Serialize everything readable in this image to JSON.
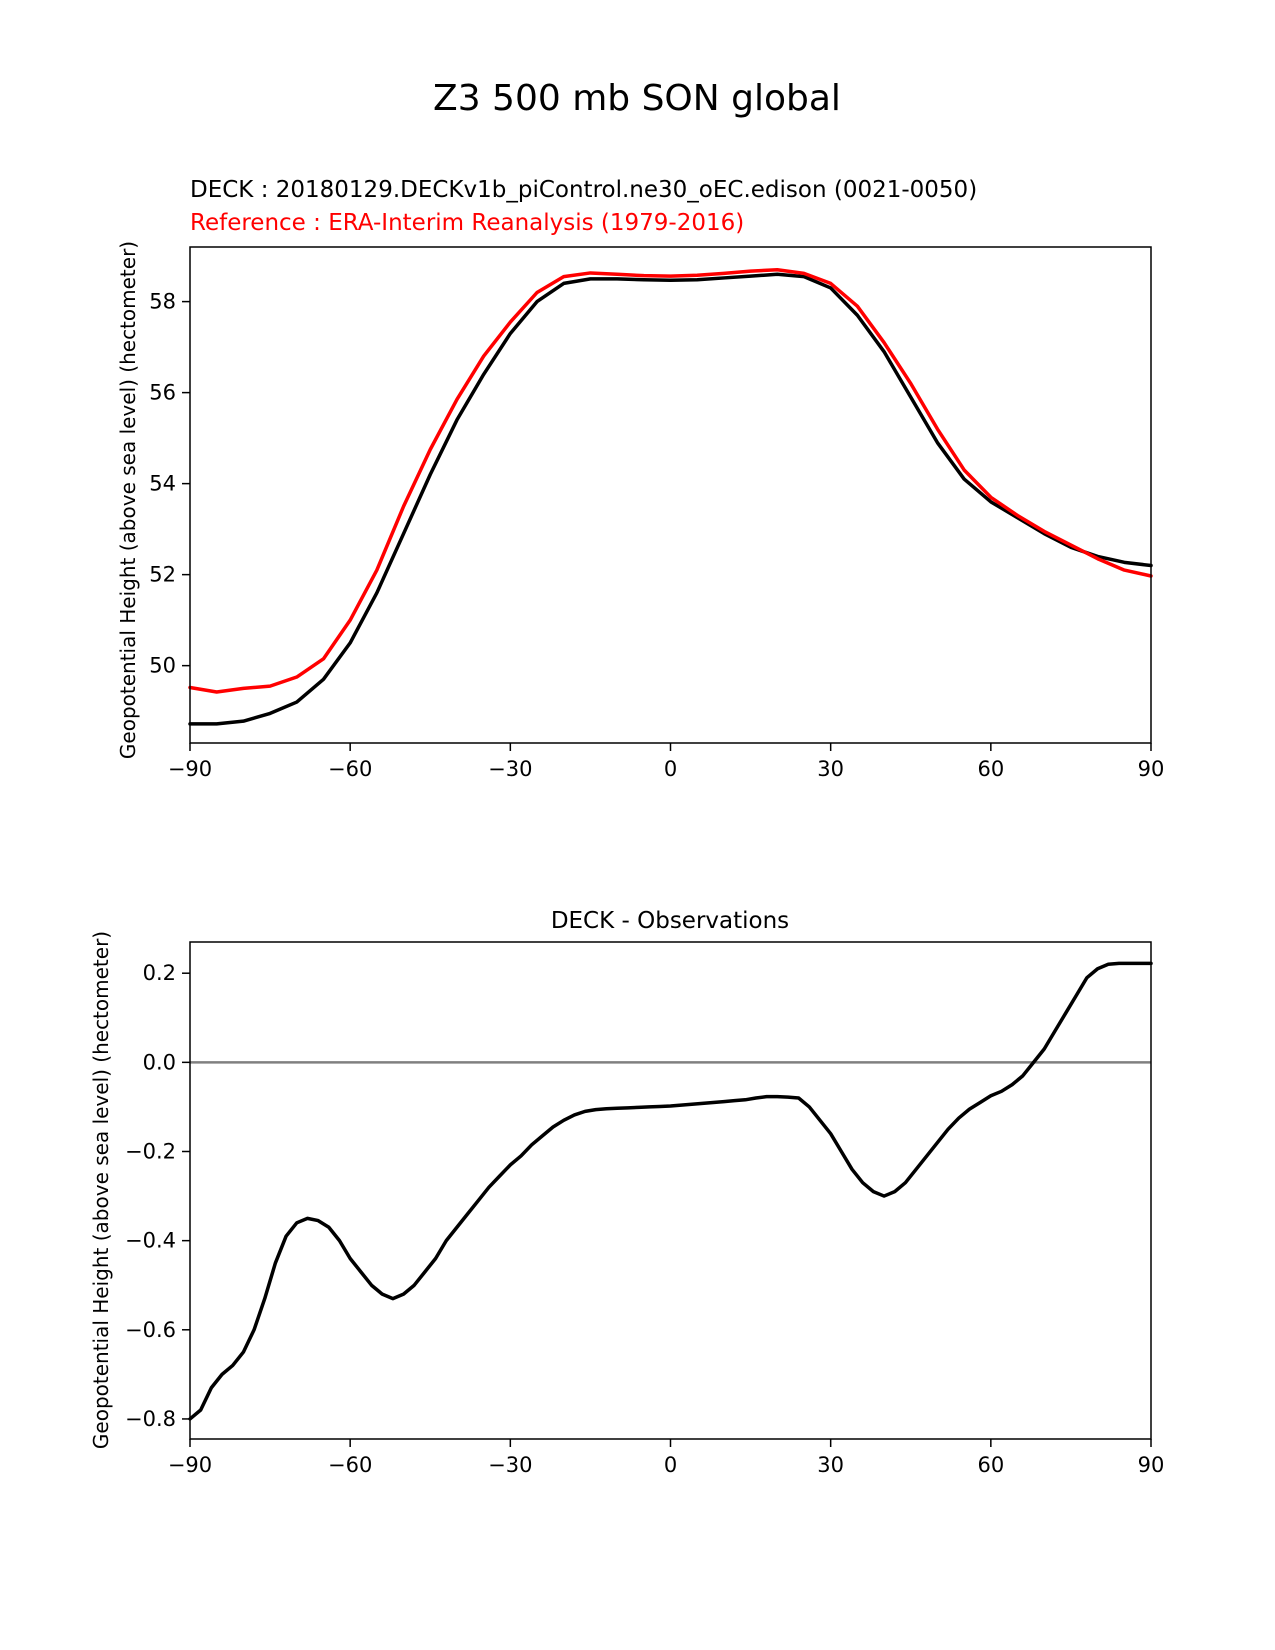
{
  "figure": {
    "suptitle": "Z3 500 mb SON global"
  },
  "chart_data": [
    {
      "type": "line",
      "title_test": "DECK : 20180129.DECKv1b_piControl.ne30_oEC.edison (0021-0050)",
      "title_ref": "Reference : ERA-Interim Reanalysis (1979-2016)",
      "xlabel": "",
      "ylabel": "Geopotential Height (above sea level) (hectometer)",
      "xlim": [
        -90,
        90
      ],
      "ylim": [
        48.3,
        59.2
      ],
      "xticks": [
        -90,
        -60,
        -30,
        0,
        30,
        60,
        90
      ],
      "xtick_labels": [
        "−90",
        "−60",
        "−30",
        "0",
        "30",
        "60",
        "90"
      ],
      "yticks": [
        50,
        52,
        54,
        56,
        58
      ],
      "ytick_labels": [
        "50",
        "52",
        "54",
        "56",
        "58"
      ],
      "x": [
        -90,
        -85,
        -80,
        -75,
        -70,
        -65,
        -60,
        -55,
        -50,
        -45,
        -40,
        -35,
        -30,
        -25,
        -20,
        -15,
        -10,
        -5,
        0,
        5,
        10,
        15,
        20,
        25,
        30,
        35,
        40,
        45,
        50,
        55,
        60,
        65,
        70,
        75,
        80,
        85,
        90
      ],
      "series": [
        {
          "name": "DECK",
          "color": "#000000",
          "values": [
            48.72,
            48.72,
            48.78,
            48.95,
            49.2,
            49.7,
            50.5,
            51.6,
            52.9,
            54.2,
            55.4,
            56.4,
            57.3,
            58.0,
            58.4,
            58.5,
            58.5,
            58.48,
            58.47,
            58.48,
            58.52,
            58.56,
            58.6,
            58.55,
            58.3,
            57.7,
            56.9,
            55.9,
            54.9,
            54.1,
            53.6,
            53.25,
            52.9,
            52.6,
            52.4,
            52.27,
            52.2
          ]
        },
        {
          "name": "ERA-Interim",
          "color": "#ff0000",
          "values": [
            49.52,
            49.42,
            49.5,
            49.55,
            49.75,
            50.15,
            51.0,
            52.1,
            53.5,
            54.75,
            55.85,
            56.8,
            57.55,
            58.2,
            58.55,
            58.63,
            58.6,
            58.57,
            58.56,
            58.58,
            58.62,
            58.67,
            58.7,
            58.62,
            58.4,
            57.9,
            57.1,
            56.2,
            55.2,
            54.3,
            53.7,
            53.3,
            52.95,
            52.65,
            52.35,
            52.1,
            51.97
          ]
        }
      ]
    },
    {
      "type": "line",
      "title": "DECK - Observations",
      "xlabel": "",
      "ylabel": "Geopotential Height (above sea level) (hectometer)",
      "xlim": [
        -90,
        90
      ],
      "ylim": [
        -0.845,
        0.27
      ],
      "xticks": [
        -90,
        -60,
        -30,
        0,
        30,
        60,
        90
      ],
      "xtick_labels": [
        "−90",
        "−60",
        "−30",
        "0",
        "30",
        "60",
        "90"
      ],
      "yticks": [
        -0.8,
        -0.6,
        -0.4,
        -0.2,
        0.0,
        0.2
      ],
      "ytick_labels": [
        "−0.8",
        "−0.6",
        "−0.4",
        "−0.2",
        "0.0",
        "0.2"
      ],
      "zero_line": {
        "value": 0,
        "color": "#808080"
      },
      "x": [
        -90,
        -88,
        -86,
        -84,
        -82,
        -80,
        -78,
        -76,
        -74,
        -72,
        -70,
        -68,
        -66,
        -64,
        -62,
        -60,
        -58,
        -56,
        -54,
        -52,
        -50,
        -48,
        -46,
        -44,
        -42,
        -40,
        -38,
        -36,
        -34,
        -32,
        -30,
        -28,
        -26,
        -24,
        -22,
        -20,
        -18,
        -16,
        -14,
        -12,
        -10,
        -8,
        -6,
        -4,
        -2,
        0,
        2,
        4,
        6,
        8,
        10,
        12,
        14,
        16,
        18,
        20,
        22,
        24,
        26,
        28,
        30,
        32,
        34,
        36,
        38,
        40,
        42,
        44,
        46,
        48,
        50,
        52,
        54,
        56,
        58,
        60,
        62,
        64,
        66,
        68,
        70,
        72,
        74,
        76,
        78,
        80,
        82,
        84,
        86,
        88,
        90
      ],
      "series": [
        {
          "name": "DECK - Observations",
          "color": "#000000",
          "values": [
            -0.8,
            -0.78,
            -0.73,
            -0.7,
            -0.68,
            -0.65,
            -0.6,
            -0.53,
            -0.45,
            -0.39,
            -0.36,
            -0.35,
            -0.355,
            -0.37,
            -0.4,
            -0.44,
            -0.47,
            -0.5,
            -0.52,
            -0.53,
            -0.52,
            -0.5,
            -0.47,
            -0.44,
            -0.4,
            -0.37,
            -0.34,
            -0.31,
            -0.28,
            -0.255,
            -0.23,
            -0.21,
            -0.185,
            -0.165,
            -0.145,
            -0.13,
            -0.118,
            -0.11,
            -0.106,
            -0.104,
            -0.103,
            -0.102,
            -0.101,
            -0.1,
            -0.099,
            -0.098,
            -0.096,
            -0.094,
            -0.092,
            -0.09,
            -0.088,
            -0.086,
            -0.084,
            -0.08,
            -0.077,
            -0.077,
            -0.078,
            -0.08,
            -0.1,
            -0.13,
            -0.16,
            -0.2,
            -0.24,
            -0.27,
            -0.29,
            -0.3,
            -0.29,
            -0.27,
            -0.24,
            -0.21,
            -0.18,
            -0.15,
            -0.125,
            -0.105,
            -0.09,
            -0.075,
            -0.065,
            -0.05,
            -0.03,
            0.0,
            0.03,
            0.07,
            0.11,
            0.15,
            0.19,
            0.21,
            0.22,
            0.222,
            0.222,
            0.222,
            0.222
          ]
        }
      ]
    }
  ]
}
